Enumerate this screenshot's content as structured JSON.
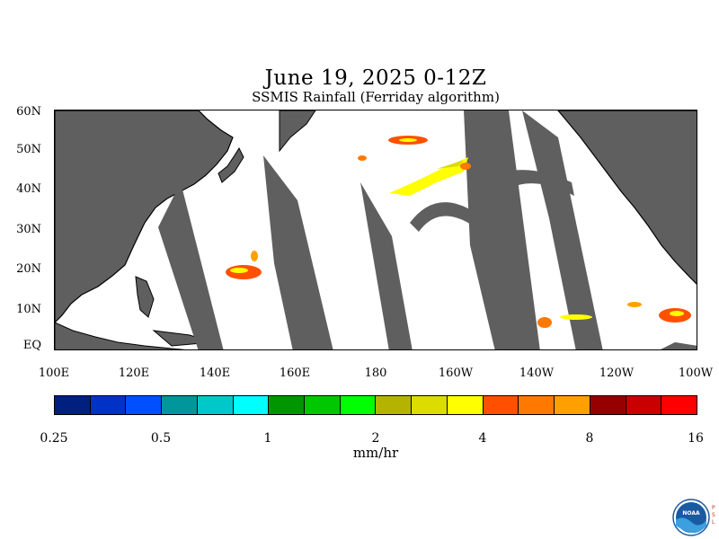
{
  "title": "June 19, 2025 0-12Z",
  "subtitle": "SSMIS Rainfall (Ferriday algorithm)",
  "lat_labels": [
    "60N",
    "50N",
    "40N",
    "30N",
    "20N",
    "10N",
    "EQ"
  ],
  "lon_labels": [
    "100E",
    "120E",
    "140E",
    "160E",
    "180",
    "160W",
    "140W",
    "120W",
    "100W"
  ],
  "colorbar": {
    "colors": [
      "#00207f",
      "#0032c8",
      "#0050ff",
      "#00969b",
      "#00c8c8",
      "#00ffff",
      "#009600",
      "#00c800",
      "#00ff00",
      "#b4b400",
      "#dcdc00",
      "#ffff00",
      "#ff5000",
      "#ff7800",
      "#ffa000",
      "#960000",
      "#c80000",
      "#ff0000"
    ],
    "tick_labels": [
      "0.25",
      "0.5",
      "1",
      "2",
      "4",
      "8",
      "16"
    ]
  },
  "units": "mm/hr",
  "colors": {
    "land": "#5f5f5f",
    "swath_gap": "#5f5f5f",
    "no_rain": "#ffffff"
  },
  "logo": {
    "text": "NOAA",
    "side_text": "PSL"
  }
}
